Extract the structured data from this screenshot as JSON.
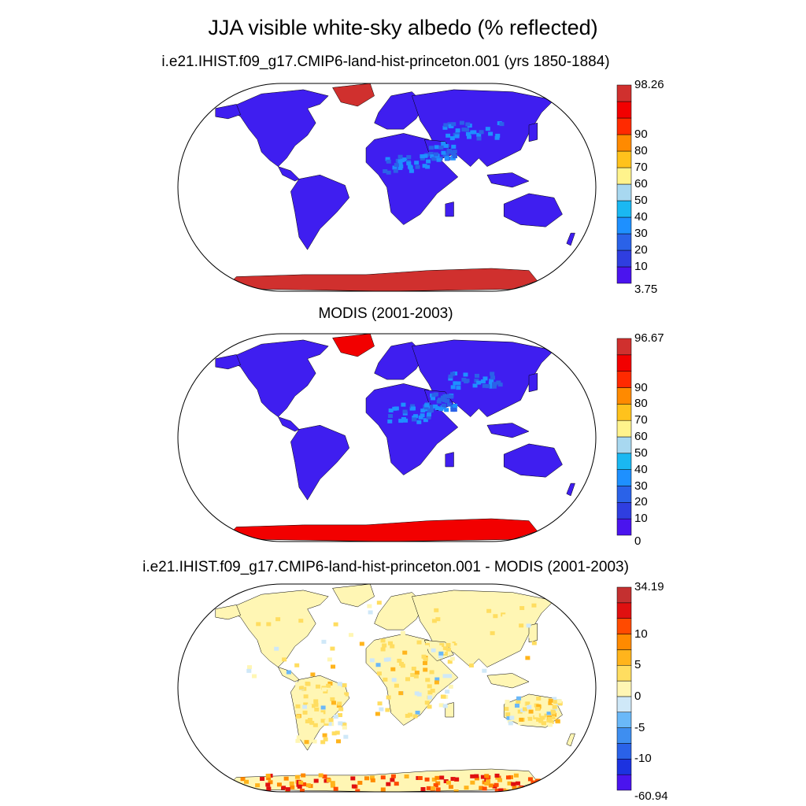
{
  "title": "JJA visible white-sky albedo (% reflected)",
  "panels": [
    {
      "title": "i.e21.IHIST.f09_g17.CMIP6-land-hist-princeton.001 (yrs 1850-1884)",
      "variable": "model",
      "colorbar": {
        "colors": [
          "#4a14ee",
          "#2f3ee0",
          "#2a62e8",
          "#1e90ff",
          "#1ab8f2",
          "#a8d8f0",
          "#fff38c",
          "#ffc21c",
          "#ff8a00",
          "#ff2a00",
          "#f20000",
          "#d0302e"
        ],
        "labels": [
          "3.75",
          "10",
          "20",
          "30",
          "40",
          "50",
          "60",
          "70",
          "80",
          "90",
          "98.26"
        ]
      }
    },
    {
      "title": "MODIS (2001-2003)",
      "variable": "obs",
      "colorbar": {
        "colors": [
          "#4a14ee",
          "#2f3ee0",
          "#2a62e8",
          "#1e90ff",
          "#1ab8f2",
          "#a8d8f0",
          "#fff38c",
          "#ffc21c",
          "#ff8a00",
          "#ff2a00",
          "#f20000",
          "#d0302e"
        ],
        "labels": [
          "0",
          "10",
          "20",
          "30",
          "40",
          "50",
          "60",
          "70",
          "80",
          "90",
          "96.67"
        ]
      }
    },
    {
      "title": "i.e21.IHIST.f09_g17.CMIP6-land-hist-princeton.001 - MODIS (2001-2003)",
      "variable": "difference",
      "colorbar": {
        "colors": [
          "#4a14ee",
          "#1c32e0",
          "#2a62e8",
          "#3e8ef0",
          "#6ab8f8",
          "#cfe8f8",
          "#fff6b4",
          "#ffdd60",
          "#ffb41c",
          "#ff8a00",
          "#ff4a00",
          "#e01010",
          "#c43030"
        ],
        "labels": [
          "-60.94",
          "-10",
          "-5",
          "0",
          "5",
          "10",
          "34.19"
        ],
        "label_slots": [
          0,
          2,
          4,
          6,
          8,
          10,
          13
        ]
      }
    }
  ],
  "map": {
    "projection": "Robinson",
    "land_color": "#3f1ef0",
    "ice_color_model": "#d0302e",
    "ice_color_obs": "#f20000"
  }
}
